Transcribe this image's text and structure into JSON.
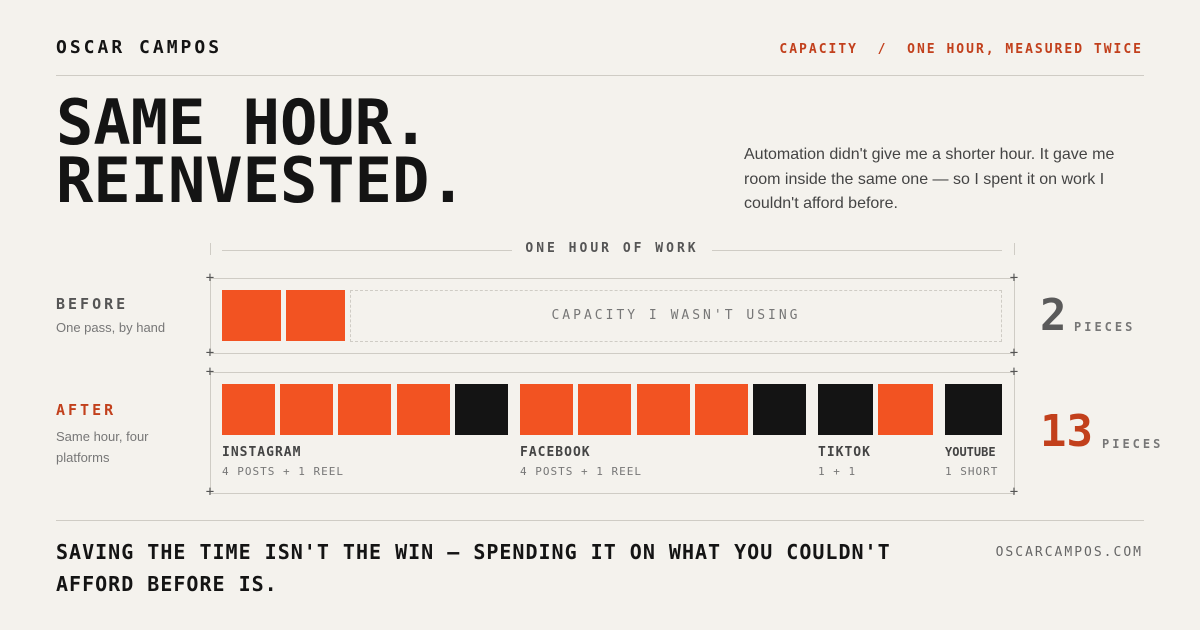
{
  "header": {
    "name": "OSCAR CAMPOS",
    "section": "CAPACITY",
    "separator": "/",
    "subtitle": "ONE HOUR, MEASURED TWICE"
  },
  "headline": {
    "lines": [
      "SAME HOUR.",
      "REINVESTED."
    ],
    "intro": "Automation didn't give me a shorter hour. It gave me room inside the same one — so I spent it on work I couldn't afford before."
  },
  "chart": {
    "axis_label": "ONE HOUR OF WORK",
    "before": {
      "label": "BEFORE",
      "sub": "One pass, by hand",
      "empty_label": "CAPACITY I WASN'T USING",
      "count": "2",
      "unit": "PIECES"
    },
    "after": {
      "label": "AFTER",
      "sub": "Same hour, four platforms",
      "count": "13",
      "unit": "PIECES",
      "platforms": [
        {
          "name": "INSTAGRAM",
          "detail": "4 POSTS + 1 REEL"
        },
        {
          "name": "FACEBOOK",
          "detail": "4 POSTS + 1 REEL"
        },
        {
          "name": "TIKTOK",
          "detail": "1 + 1"
        },
        {
          "name": "YOUTUBE",
          "detail": "1 SHORT"
        }
      ]
    }
  },
  "footer": {
    "quote": "SAVING THE TIME ISN'T THE WIN — SPENDING IT ON WHAT YOU COULDN'T AFFORD BEFORE IS.",
    "site": "OSCARCAMPOS.COM"
  }
}
